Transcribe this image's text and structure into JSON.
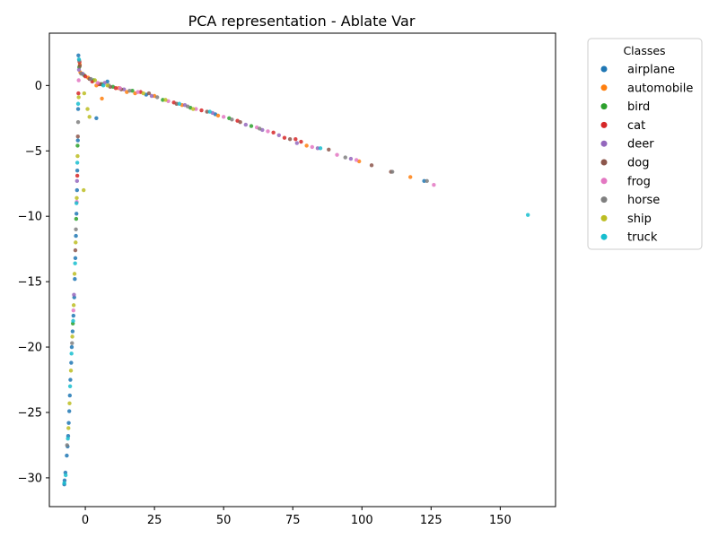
{
  "chart_data": {
    "type": "scatter",
    "title": "PCA representation - Ablate Var",
    "xlabel": "",
    "ylabel": "",
    "xlim": [
      -13,
      170
    ],
    "ylim": [
      -32.2,
      4.0
    ],
    "x_ticks": [
      0,
      25,
      50,
      75,
      100,
      125,
      150
    ],
    "y_ticks": [
      0,
      -5,
      -10,
      -15,
      -20,
      -25,
      -30
    ],
    "x_tick_labels": [
      "0",
      "25",
      "50",
      "75",
      "100",
      "125",
      "150"
    ],
    "y_tick_labels": [
      "0",
      "−5",
      "−10",
      "−15",
      "−20",
      "−25",
      "−30"
    ],
    "grid": false,
    "legend": {
      "title": "Classes",
      "placement": "outside-top-right"
    },
    "series": [
      {
        "name": "airplane",
        "color": "#1f77b4",
        "points": [
          [
            -2.5,
            2.3
          ],
          [
            -2.6,
            -1.8
          ],
          [
            -2.7,
            -4.2
          ],
          [
            -2.9,
            -6.5
          ],
          [
            -3.0,
            -8.0
          ],
          [
            -3.2,
            -9.8
          ],
          [
            -3.4,
            -11.5
          ],
          [
            -3.6,
            -13.2
          ],
          [
            -3.8,
            -14.8
          ],
          [
            -4.0,
            -16.2
          ],
          [
            -4.3,
            -17.6
          ],
          [
            -4.6,
            -18.8
          ],
          [
            -4.9,
            -20.0
          ],
          [
            -5.1,
            -21.2
          ],
          [
            -5.4,
            -22.5
          ],
          [
            -5.6,
            -23.7
          ],
          [
            -5.8,
            -24.9
          ],
          [
            -6.0,
            -25.8
          ],
          [
            -6.2,
            -26.8
          ],
          [
            -6.4,
            -27.6
          ],
          [
            -6.7,
            -28.3
          ],
          [
            -7.2,
            -29.6
          ],
          [
            -7.5,
            -30.2
          ],
          [
            -7.6,
            -30.5
          ],
          [
            4.0,
            -2.5
          ],
          [
            8.0,
            0.3
          ],
          [
            22.0,
            -0.7
          ],
          [
            47.0,
            -2.2
          ],
          [
            122.5,
            -7.3
          ]
        ]
      },
      {
        "name": "automobile",
        "color": "#ff7f0e",
        "points": [
          [
            -2.0,
            1.6
          ],
          [
            -1.8,
            1.0
          ],
          [
            1.0,
            0.6
          ],
          [
            4.0,
            0.0
          ],
          [
            6.0,
            -1.0
          ],
          [
            12.0,
            -0.2
          ],
          [
            15.0,
            -0.5
          ],
          [
            18.0,
            -0.6
          ],
          [
            25.0,
            -0.8
          ],
          [
            35.0,
            -1.5
          ],
          [
            48.0,
            -2.3
          ],
          [
            80.0,
            -4.6
          ],
          [
            99.0,
            -5.8
          ],
          [
            117.5,
            -7.0
          ]
        ]
      },
      {
        "name": "bird",
        "color": "#2ca02c",
        "points": [
          [
            -2.2,
            1.4
          ],
          [
            -2.8,
            -4.6
          ],
          [
            -3.3,
            -10.2
          ],
          [
            -4.5,
            -18.2
          ],
          [
            -0.5,
            0.8
          ],
          [
            3.0,
            0.4
          ],
          [
            6.0,
            0.1
          ],
          [
            10.0,
            -0.1
          ],
          [
            17.0,
            -0.4
          ],
          [
            28.0,
            -1.1
          ],
          [
            38.0,
            -1.7
          ],
          [
            52.0,
            -2.5
          ],
          [
            60.0,
            -3.1
          ]
        ]
      },
      {
        "name": "cat",
        "color": "#d62728",
        "points": [
          [
            -2.1,
            1.8
          ],
          [
            -2.5,
            -0.6
          ],
          [
            -2.9,
            -6.9
          ],
          [
            0.0,
            0.7
          ],
          [
            2.5,
            0.3
          ],
          [
            5.0,
            0.1
          ],
          [
            11.0,
            -0.2
          ],
          [
            20.0,
            -0.5
          ],
          [
            32.0,
            -1.3
          ],
          [
            42.0,
            -1.9
          ],
          [
            55.0,
            -2.7
          ],
          [
            68.0,
            -3.6
          ],
          [
            72.0,
            -4.0
          ],
          [
            76.0,
            -4.1
          ],
          [
            78.0,
            -4.3
          ]
        ]
      },
      {
        "name": "deer",
        "color": "#9467bd",
        "points": [
          [
            -2.3,
            1.2
          ],
          [
            -3.0,
            -7.3
          ],
          [
            -4.1,
            -16.0
          ],
          [
            -1.0,
            0.9
          ],
          [
            7.0,
            0.2
          ],
          [
            14.0,
            -0.3
          ],
          [
            24.0,
            -0.8
          ],
          [
            36.0,
            -1.5
          ],
          [
            46.0,
            -2.1
          ],
          [
            58.0,
            -3.0
          ],
          [
            64.0,
            -3.4
          ],
          [
            70.0,
            -3.8
          ],
          [
            76.5,
            -4.4
          ],
          [
            84.0,
            -4.8
          ],
          [
            96.0,
            -5.6
          ]
        ]
      },
      {
        "name": "dog",
        "color": "#8c564b",
        "points": [
          [
            -2.0,
            1.5
          ],
          [
            -2.7,
            -3.9
          ],
          [
            -3.6,
            -12.6
          ],
          [
            1.5,
            0.5
          ],
          [
            5.5,
            0.1
          ],
          [
            9.0,
            -0.1
          ],
          [
            13.0,
            -0.3
          ],
          [
            23.0,
            -0.6
          ],
          [
            33.0,
            -1.4
          ],
          [
            44.0,
            -2.0
          ],
          [
            56.0,
            -2.8
          ],
          [
            74.0,
            -4.1
          ],
          [
            88.0,
            -4.9
          ],
          [
            103.5,
            -6.1
          ],
          [
            110.5,
            -6.6
          ]
        ]
      },
      {
        "name": "frog",
        "color": "#e377c2",
        "points": [
          [
            -2.4,
            0.4
          ],
          [
            -3.1,
            -8.9
          ],
          [
            -4.3,
            -17.2
          ],
          [
            4.5,
            0.2
          ],
          [
            12.5,
            -0.2
          ],
          [
            19.0,
            -0.5
          ],
          [
            30.0,
            -1.2
          ],
          [
            40.0,
            -1.8
          ],
          [
            50.0,
            -2.4
          ],
          [
            62.0,
            -3.2
          ],
          [
            66.0,
            -3.5
          ],
          [
            82.0,
            -4.7
          ],
          [
            91.0,
            -5.3
          ],
          [
            98.0,
            -5.7
          ],
          [
            126.0,
            -7.6
          ]
        ]
      },
      {
        "name": "horse",
        "color": "#7f7f7f",
        "points": [
          [
            -2.2,
            1.9
          ],
          [
            -2.6,
            -2.8
          ],
          [
            -3.4,
            -11.0
          ],
          [
            -4.8,
            -19.7
          ],
          [
            -6.6,
            -27.5
          ],
          [
            -1.5,
            0.9
          ],
          [
            2.0,
            0.5
          ],
          [
            8.5,
            0.0
          ],
          [
            16.0,
            -0.4
          ],
          [
            26.0,
            -0.9
          ],
          [
            37.0,
            -1.6
          ],
          [
            53.0,
            -2.6
          ],
          [
            63.0,
            -3.3
          ],
          [
            94.0,
            -5.5
          ],
          [
            111.0,
            -6.6
          ],
          [
            123.5,
            -7.3
          ]
        ]
      },
      {
        "name": "ship",
        "color": "#bcbd22",
        "points": [
          [
            -2.4,
            -0.9
          ],
          [
            -2.8,
            -5.4
          ],
          [
            -3.1,
            -8.6
          ],
          [
            -3.5,
            -12.0
          ],
          [
            -3.9,
            -14.4
          ],
          [
            -4.2,
            -16.8
          ],
          [
            -4.7,
            -19.2
          ],
          [
            -5.2,
            -21.8
          ],
          [
            -5.7,
            -24.3
          ],
          [
            -6.1,
            -26.2
          ],
          [
            -0.4,
            -0.6
          ],
          [
            0.8,
            -1.8
          ],
          [
            1.5,
            -2.4
          ],
          [
            -0.6,
            -8.0
          ],
          [
            3.5,
            0.4
          ],
          [
            8.0,
            0.0
          ],
          [
            21.0,
            -0.6
          ],
          [
            29.0,
            -1.1
          ],
          [
            39.0,
            -1.8
          ]
        ]
      },
      {
        "name": "truck",
        "color": "#17becf",
        "points": [
          [
            -2.3,
            2.0
          ],
          [
            -2.6,
            -1.4
          ],
          [
            -2.9,
            -5.9
          ],
          [
            -3.2,
            -9.0
          ],
          [
            -3.7,
            -13.6
          ],
          [
            -4.4,
            -18.0
          ],
          [
            -5.0,
            -20.5
          ],
          [
            -5.5,
            -23.0
          ],
          [
            -6.3,
            -27.0
          ],
          [
            -7.1,
            -29.8
          ],
          [
            -7.6,
            -30.4
          ],
          [
            6.5,
            0.0
          ],
          [
            34.0,
            -1.4
          ],
          [
            45.0,
            -2.0
          ],
          [
            85.0,
            -4.8
          ],
          [
            160.0,
            -9.9
          ]
        ]
      }
    ]
  }
}
